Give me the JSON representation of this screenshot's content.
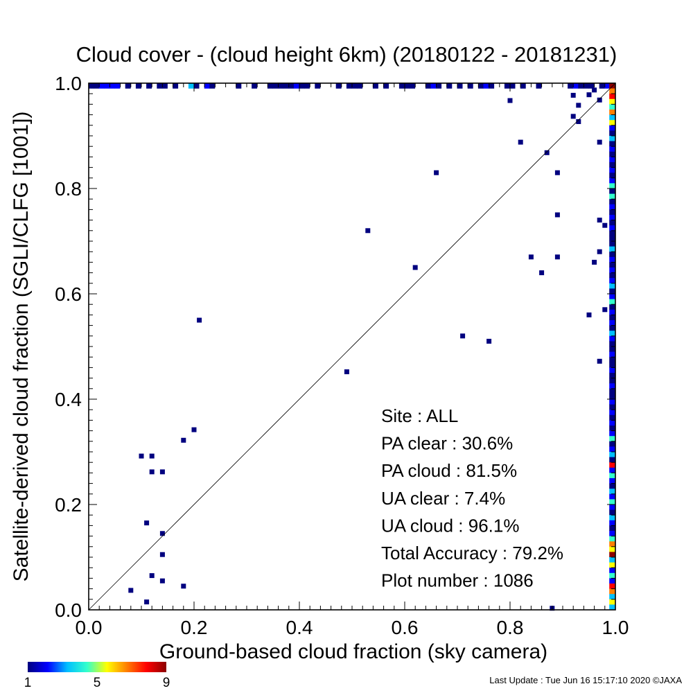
{
  "chart_data": {
    "type": "heatmap",
    "title": "Cloud cover - (cloud height 6km)  (20180122 - 20181231)",
    "xlabel": "Ground-based cloud fraction (sky camera)",
    "ylabel": "Satellite-derived cloud fraction (SGLI/CLFG [1001])",
    "xlim": [
      0.0,
      1.0
    ],
    "ylim": [
      0.0,
      1.0
    ],
    "xticks": [
      "0.0",
      "0.2",
      "0.4",
      "0.6",
      "0.8",
      "1.0"
    ],
    "yticks": [
      "0.0",
      "0.2",
      "0.4",
      "0.6",
      "0.8",
      "1.0"
    ],
    "reference_line": "1:1 diagonal",
    "grid": false,
    "colorbar": {
      "min": 1,
      "max": 9,
      "ticks": [
        "1",
        "5",
        "9"
      ],
      "colors": [
        "#00007f",
        "#0000ff",
        "#00bfff",
        "#33ffcc",
        "#ffff00",
        "#ff7f00",
        "#ff0000",
        "#8b0000"
      ]
    },
    "stats": [
      {
        "label": "Site : ALL"
      },
      {
        "label": "PA clear :  30.6%"
      },
      {
        "label": "PA cloud :  81.5%"
      },
      {
        "label": "UA clear :   7.4%"
      },
      {
        "label": "UA cloud :  96.1%"
      },
      {
        "label": "Total Accuracy :  79.2%"
      },
      {
        "label": "Plot number :      1086"
      }
    ],
    "points": [
      {
        "x": 0.08,
        "y": 0.037,
        "c": 1
      },
      {
        "x": 0.11,
        "y": 0.015,
        "c": 1
      },
      {
        "x": 0.12,
        "y": 0.065,
        "c": 1
      },
      {
        "x": 0.14,
        "y": 0.055,
        "c": 1
      },
      {
        "x": 0.18,
        "y": 0.045,
        "c": 1
      },
      {
        "x": 0.14,
        "y": 0.105,
        "c": 1
      },
      {
        "x": 0.14,
        "y": 0.145,
        "c": 1
      },
      {
        "x": 0.11,
        "y": 0.165,
        "c": 1
      },
      {
        "x": 0.12,
        "y": 0.262,
        "c": 1
      },
      {
        "x": 0.14,
        "y": 0.262,
        "c": 1
      },
      {
        "x": 0.1,
        "y": 0.292,
        "c": 1
      },
      {
        "x": 0.12,
        "y": 0.292,
        "c": 1
      },
      {
        "x": 0.18,
        "y": 0.322,
        "c": 1
      },
      {
        "x": 0.2,
        "y": 0.342,
        "c": 1
      },
      {
        "x": 0.21,
        "y": 0.55,
        "c": 1
      },
      {
        "x": 0.49,
        "y": 0.452,
        "c": 1
      },
      {
        "x": 0.53,
        "y": 0.72,
        "c": 1
      },
      {
        "x": 0.62,
        "y": 0.65,
        "c": 1
      },
      {
        "x": 0.66,
        "y": 0.83,
        "c": 1
      },
      {
        "x": 0.71,
        "y": 0.52,
        "c": 1
      },
      {
        "x": 0.76,
        "y": 0.51,
        "c": 1
      },
      {
        "x": 0.8,
        "y": 0.967,
        "c": 1
      },
      {
        "x": 0.82,
        "y": 0.888,
        "c": 1
      },
      {
        "x": 0.84,
        "y": 0.67,
        "c": 1
      },
      {
        "x": 0.86,
        "y": 0.64,
        "c": 1
      },
      {
        "x": 0.87,
        "y": 0.868,
        "c": 1
      },
      {
        "x": 0.89,
        "y": 0.83,
        "c": 1
      },
      {
        "x": 0.89,
        "y": 0.75,
        "c": 1
      },
      {
        "x": 0.89,
        "y": 0.67,
        "c": 1
      },
      {
        "x": 0.88,
        "y": 0.003,
        "c": 1
      },
      {
        "x": 0.92,
        "y": 0.937,
        "c": 1
      },
      {
        "x": 0.93,
        "y": 0.927,
        "c": 1
      },
      {
        "x": 0.92,
        "y": 0.977,
        "c": 1
      },
      {
        "x": 0.93,
        "y": 0.958,
        "c": 1
      },
      {
        "x": 0.95,
        "y": 0.978,
        "c": 1
      },
      {
        "x": 0.96,
        "y": 0.66,
        "c": 1
      },
      {
        "x": 0.97,
        "y": 0.68,
        "c": 1
      },
      {
        "x": 0.97,
        "y": 0.74,
        "c": 1
      },
      {
        "x": 0.97,
        "y": 0.888,
        "c": 1
      },
      {
        "x": 0.97,
        "y": 0.472,
        "c": 1
      },
      {
        "x": 0.95,
        "y": 0.56,
        "c": 1
      },
      {
        "x": 0.98,
        "y": 0.57,
        "c": 1
      },
      {
        "x": 0.96,
        "y": 0.987,
        "c": 1
      },
      {
        "x": 0.97,
        "y": 0.968,
        "c": 1
      },
      {
        "x": 0.98,
        "y": 0.73,
        "c": 1
      }
    ],
    "top_row_y": 0.995,
    "top_row": [
      {
        "x": 0.0,
        "c": 1
      },
      {
        "x": 0.01,
        "c": 1
      },
      {
        "x": 0.02,
        "c": 2
      },
      {
        "x": 0.03,
        "c": 2
      },
      {
        "x": 0.04,
        "c": 2
      },
      {
        "x": 0.05,
        "c": 2
      },
      {
        "x": 0.07,
        "c": 1
      },
      {
        "x": 0.09,
        "c": 1
      },
      {
        "x": 0.11,
        "c": 1
      },
      {
        "x": 0.13,
        "c": 1
      },
      {
        "x": 0.14,
        "c": 1
      },
      {
        "x": 0.16,
        "c": 1
      },
      {
        "x": 0.19,
        "c": 3
      },
      {
        "x": 0.2,
        "c": 1
      },
      {
        "x": 0.22,
        "c": 2
      },
      {
        "x": 0.23,
        "c": 1
      },
      {
        "x": 0.28,
        "c": 1
      },
      {
        "x": 0.31,
        "c": 1
      },
      {
        "x": 0.34,
        "c": 1
      },
      {
        "x": 0.35,
        "c": 1
      },
      {
        "x": 0.36,
        "c": 1
      },
      {
        "x": 0.37,
        "c": 1
      },
      {
        "x": 0.38,
        "c": 1
      },
      {
        "x": 0.39,
        "c": 2
      },
      {
        "x": 0.4,
        "c": 1
      },
      {
        "x": 0.41,
        "c": 1
      },
      {
        "x": 0.43,
        "c": 1
      },
      {
        "x": 0.47,
        "c": 1
      },
      {
        "x": 0.49,
        "c": 1
      },
      {
        "x": 0.5,
        "c": 1
      },
      {
        "x": 0.51,
        "c": 1
      },
      {
        "x": 0.54,
        "c": 1
      },
      {
        "x": 0.56,
        "c": 1
      },
      {
        "x": 0.59,
        "c": 1
      },
      {
        "x": 0.6,
        "c": 1
      },
      {
        "x": 0.61,
        "c": 1
      },
      {
        "x": 0.64,
        "c": 1
      },
      {
        "x": 0.65,
        "c": 2
      },
      {
        "x": 0.66,
        "c": 1
      },
      {
        "x": 0.68,
        "c": 1
      },
      {
        "x": 0.7,
        "c": 1
      },
      {
        "x": 0.72,
        "c": 1
      },
      {
        "x": 0.74,
        "c": 1
      },
      {
        "x": 0.75,
        "c": 2
      },
      {
        "x": 0.76,
        "c": 1
      },
      {
        "x": 0.79,
        "c": 1
      },
      {
        "x": 0.8,
        "c": 1
      },
      {
        "x": 0.82,
        "c": 1
      },
      {
        "x": 0.85,
        "c": 1
      },
      {
        "x": 0.91,
        "c": 1
      },
      {
        "x": 0.92,
        "c": 2
      },
      {
        "x": 0.93,
        "c": 1
      },
      {
        "x": 0.94,
        "c": 1
      },
      {
        "x": 0.95,
        "c": 1
      },
      {
        "x": 0.97,
        "c": 1
      },
      {
        "x": 0.98,
        "c": 2
      }
    ],
    "right_col_x": 0.995,
    "right_col": [
      {
        "y": 0.0,
        "c": 3
      },
      {
        "y": 0.01,
        "c": 5
      },
      {
        "y": 0.02,
        "c": 3
      },
      {
        "y": 0.03,
        "c": 7
      },
      {
        "y": 0.04,
        "c": 8
      },
      {
        "y": 0.05,
        "c": 2
      },
      {
        "y": 0.06,
        "c": 4
      },
      {
        "y": 0.07,
        "c": 2
      },
      {
        "y": 0.08,
        "c": 6
      },
      {
        "y": 0.09,
        "c": 3
      },
      {
        "y": 0.1,
        "c": 9
      },
      {
        "y": 0.11,
        "c": 6
      },
      {
        "y": 0.12,
        "c": 7
      },
      {
        "y": 0.13,
        "c": 4
      },
      {
        "y": 0.14,
        "c": 2
      },
      {
        "y": 0.15,
        "c": 1
      },
      {
        "y": 0.16,
        "c": 2
      },
      {
        "y": 0.17,
        "c": 3
      },
      {
        "y": 0.18,
        "c": 1
      },
      {
        "y": 0.19,
        "c": 2
      },
      {
        "y": 0.2,
        "c": 4
      },
      {
        "y": 0.21,
        "c": 2
      },
      {
        "y": 0.22,
        "c": 3
      },
      {
        "y": 0.23,
        "c": 1
      },
      {
        "y": 0.24,
        "c": 2
      },
      {
        "y": 0.25,
        "c": 4
      },
      {
        "y": 0.26,
        "c": 2
      },
      {
        "y": 0.27,
        "c": 8
      },
      {
        "y": 0.28,
        "c": 1
      },
      {
        "y": 0.29,
        "c": 3
      },
      {
        "y": 0.3,
        "c": 2
      },
      {
        "y": 0.31,
        "c": 1
      },
      {
        "y": 0.32,
        "c": 4
      },
      {
        "y": 0.33,
        "c": 2
      },
      {
        "y": 0.34,
        "c": 1
      },
      {
        "y": 0.35,
        "c": 2
      },
      {
        "y": 0.36,
        "c": 1
      },
      {
        "y": 0.37,
        "c": 2
      },
      {
        "y": 0.38,
        "c": 1
      },
      {
        "y": 0.39,
        "c": 2
      },
      {
        "y": 0.4,
        "c": 1
      },
      {
        "y": 0.41,
        "c": 1
      },
      {
        "y": 0.42,
        "c": 2
      },
      {
        "y": 0.43,
        "c": 1
      },
      {
        "y": 0.44,
        "c": 1
      },
      {
        "y": 0.45,
        "c": 2
      },
      {
        "y": 0.46,
        "c": 1
      },
      {
        "y": 0.47,
        "c": 1
      },
      {
        "y": 0.48,
        "c": 2
      },
      {
        "y": 0.49,
        "c": 1
      },
      {
        "y": 0.5,
        "c": 1
      },
      {
        "y": 0.51,
        "c": 2
      },
      {
        "y": 0.52,
        "c": 3
      },
      {
        "y": 0.53,
        "c": 1
      },
      {
        "y": 0.54,
        "c": 2
      },
      {
        "y": 0.55,
        "c": 1
      },
      {
        "y": 0.56,
        "c": 2
      },
      {
        "y": 0.57,
        "c": 1
      },
      {
        "y": 0.58,
        "c": 4
      },
      {
        "y": 0.59,
        "c": 2
      },
      {
        "y": 0.6,
        "c": 1
      },
      {
        "y": 0.61,
        "c": 3
      },
      {
        "y": 0.62,
        "c": 2
      },
      {
        "y": 0.63,
        "c": 1
      },
      {
        "y": 0.64,
        "c": 2
      },
      {
        "y": 0.65,
        "c": 1
      },
      {
        "y": 0.66,
        "c": 2
      },
      {
        "y": 0.67,
        "c": 1
      },
      {
        "y": 0.68,
        "c": 3
      },
      {
        "y": 0.69,
        "c": 1
      },
      {
        "y": 0.7,
        "c": 1
      },
      {
        "y": 0.71,
        "c": 1
      },
      {
        "y": 0.72,
        "c": 2
      },
      {
        "y": 0.73,
        "c": 1
      },
      {
        "y": 0.74,
        "c": 2
      },
      {
        "y": 0.75,
        "c": 1
      },
      {
        "y": 0.76,
        "c": 2
      },
      {
        "y": 0.77,
        "c": 1
      },
      {
        "y": 0.78,
        "c": 4
      },
      {
        "y": 0.79,
        "c": 1
      },
      {
        "y": 0.8,
        "c": 4
      },
      {
        "y": 0.81,
        "c": 2
      },
      {
        "y": 0.82,
        "c": 1
      },
      {
        "y": 0.83,
        "c": 2
      },
      {
        "y": 0.84,
        "c": 1
      },
      {
        "y": 0.85,
        "c": 2
      },
      {
        "y": 0.86,
        "c": 1
      },
      {
        "y": 0.87,
        "c": 2
      },
      {
        "y": 0.88,
        "c": 1
      },
      {
        "y": 0.89,
        "c": 3
      },
      {
        "y": 0.9,
        "c": 1
      },
      {
        "y": 0.91,
        "c": 2
      },
      {
        "y": 0.92,
        "c": 5
      },
      {
        "y": 0.93,
        "c": 3
      },
      {
        "y": 0.94,
        "c": 7
      },
      {
        "y": 0.95,
        "c": 4
      },
      {
        "y": 0.96,
        "c": 6
      },
      {
        "y": 0.97,
        "c": 8
      },
      {
        "y": 0.98,
        "c": 7
      },
      {
        "y": 0.99,
        "c": 9
      }
    ]
  },
  "footer": {
    "last_update": "Last Update : Tue Jun 16 15:17:10 2020  ©JAXA"
  }
}
